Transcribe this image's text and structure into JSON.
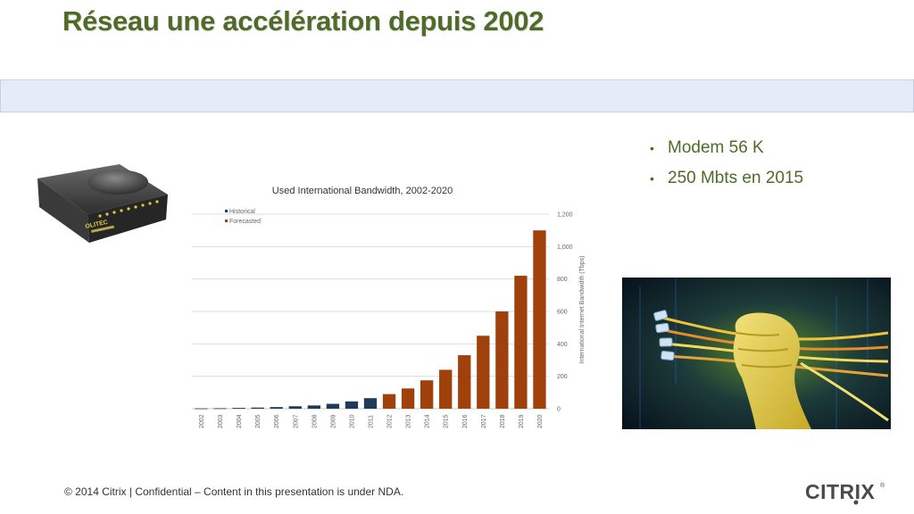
{
  "slide": {
    "title": "Réseau une accélération depuis 2002"
  },
  "bullets": [
    "Modem 56 K",
    "250 Mbts en 2015"
  ],
  "modem_photo": {
    "brand_text": "OLITEC"
  },
  "footer": {
    "text": "© 2014 Citrix | Confidential – Content in this presentation is under NDA."
  },
  "logo": {
    "text": "CITRIX"
  },
  "colors": {
    "title": "#4f6b28",
    "bullet": "#4f6b28",
    "historical": "#1f3b57",
    "forecasted": "#a0410c"
  },
  "chart_data": {
    "type": "bar",
    "title": "Used International Bandwidth, 2002-2020",
    "ylabel": "International Internet Bandwidth (Tbps)",
    "xlabel": "",
    "y_axis_side": "right",
    "ylim": [
      0,
      1200
    ],
    "yticks": [
      0,
      200,
      400,
      600,
      800,
      "1,000",
      "1,200"
    ],
    "grid": true,
    "legend_position": "top-left",
    "categories": [
      "2002",
      "2003",
      "2004",
      "2005",
      "2006",
      "2007",
      "2008",
      "2009",
      "2010",
      "2011",
      "2012",
      "2013",
      "2014",
      "2015",
      "2016",
      "2017",
      "2018",
      "2019",
      "2020"
    ],
    "series": [
      {
        "name": "Historical",
        "values": [
          2,
          3,
          5,
          7,
          10,
          15,
          20,
          30,
          45,
          65,
          null,
          null,
          null,
          null,
          null,
          null,
          null,
          null,
          null
        ]
      },
      {
        "name": "Forecasted",
        "values": [
          null,
          null,
          null,
          null,
          null,
          null,
          null,
          null,
          null,
          null,
          90,
          125,
          175,
          240,
          330,
          450,
          600,
          820,
          1100
        ]
      }
    ]
  }
}
